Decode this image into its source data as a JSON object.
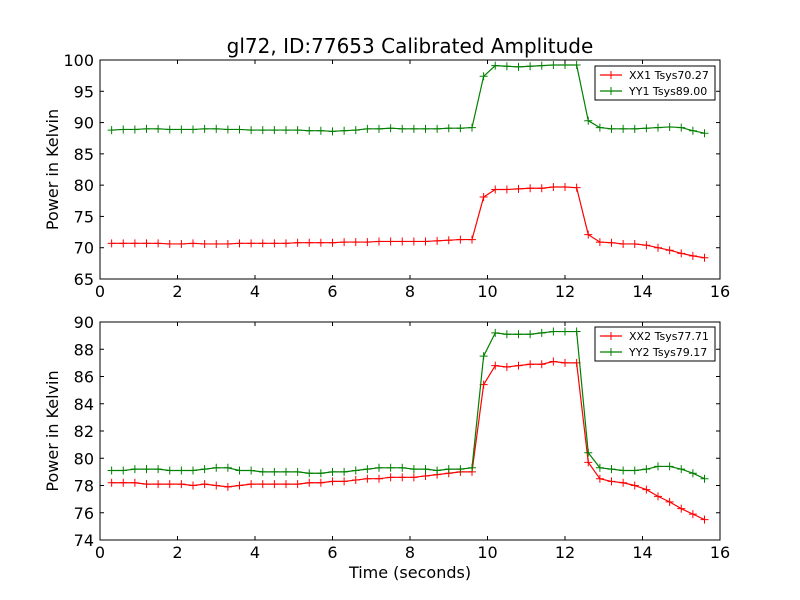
{
  "chart_data": [
    {
      "type": "line",
      "title": "gl72, ID:77653 Calibrated Amplitude",
      "xlabel": "",
      "ylabel": "Power in Kelvin",
      "xlim": [
        0,
        16
      ],
      "ylim": [
        65,
        100
      ],
      "xticks": [
        0,
        2,
        4,
        6,
        8,
        10,
        12,
        14,
        16
      ],
      "yticks": [
        65,
        70,
        75,
        80,
        85,
        90,
        95,
        100
      ],
      "legend_position": "top-right",
      "x": [
        0.3,
        0.6,
        0.9,
        1.2,
        1.5,
        1.8,
        2.1,
        2.4,
        2.7,
        3.0,
        3.3,
        3.6,
        3.9,
        4.2,
        4.5,
        4.8,
        5.1,
        5.4,
        5.7,
        6.0,
        6.3,
        6.6,
        6.9,
        7.2,
        7.5,
        7.8,
        8.1,
        8.4,
        8.7,
        9.0,
        9.3,
        9.6,
        9.9,
        10.2,
        10.5,
        10.8,
        11.1,
        11.4,
        11.7,
        12.0,
        12.3,
        12.6,
        12.9,
        13.2,
        13.5,
        13.8,
        14.1,
        14.4,
        14.7,
        15.0,
        15.3,
        15.6
      ],
      "series": [
        {
          "name": "XX1 Tsys70.27",
          "color": "#ff0000",
          "values": [
            70.7,
            70.7,
            70.7,
            70.7,
            70.7,
            70.6,
            70.6,
            70.7,
            70.6,
            70.6,
            70.6,
            70.7,
            70.7,
            70.7,
            70.7,
            70.7,
            70.8,
            70.8,
            70.8,
            70.8,
            70.9,
            70.9,
            70.9,
            71.0,
            71.0,
            71.0,
            71.0,
            71.0,
            71.1,
            71.2,
            71.3,
            71.3,
            78.1,
            79.3,
            79.3,
            79.4,
            79.5,
            79.5,
            79.7,
            79.7,
            79.6,
            72.1,
            70.9,
            70.8,
            70.6,
            70.6,
            70.4,
            70.0,
            69.6,
            69.1,
            68.7,
            68.4
          ]
        },
        {
          "name": "YY1 Tsys89.00",
          "color": "#008000",
          "values": [
            88.8,
            88.9,
            88.9,
            89.0,
            89.0,
            88.9,
            88.9,
            88.9,
            89.0,
            89.0,
            88.9,
            88.9,
            88.8,
            88.8,
            88.8,
            88.8,
            88.8,
            88.7,
            88.7,
            88.6,
            88.7,
            88.8,
            89.0,
            89.0,
            89.1,
            89.0,
            89.0,
            89.0,
            89.0,
            89.1,
            89.1,
            89.2,
            97.4,
            99.1,
            99.0,
            98.9,
            99.0,
            99.1,
            99.2,
            99.2,
            99.2,
            90.3,
            89.2,
            89.0,
            89.0,
            89.0,
            89.1,
            89.2,
            89.3,
            89.2,
            88.7,
            88.3
          ]
        }
      ]
    },
    {
      "type": "line",
      "title": "",
      "xlabel": "Time (seconds)",
      "ylabel": "Power in Kelvin",
      "xlim": [
        0,
        16
      ],
      "ylim": [
        74,
        90
      ],
      "xticks": [
        0,
        2,
        4,
        6,
        8,
        10,
        12,
        14,
        16
      ],
      "yticks": [
        74,
        76,
        78,
        80,
        82,
        84,
        86,
        88,
        90
      ],
      "legend_position": "top-right",
      "x": [
        0.3,
        0.6,
        0.9,
        1.2,
        1.5,
        1.8,
        2.1,
        2.4,
        2.7,
        3.0,
        3.3,
        3.6,
        3.9,
        4.2,
        4.5,
        4.8,
        5.1,
        5.4,
        5.7,
        6.0,
        6.3,
        6.6,
        6.9,
        7.2,
        7.5,
        7.8,
        8.1,
        8.4,
        8.7,
        9.0,
        9.3,
        9.6,
        9.9,
        10.2,
        10.5,
        10.8,
        11.1,
        11.4,
        11.7,
        12.0,
        12.3,
        12.6,
        12.9,
        13.2,
        13.5,
        13.8,
        14.1,
        14.4,
        14.7,
        15.0,
        15.3,
        15.6
      ],
      "series": [
        {
          "name": "XX2 Tsys77.71",
          "color": "#ff0000",
          "values": [
            78.2,
            78.2,
            78.2,
            78.1,
            78.1,
            78.1,
            78.1,
            78.0,
            78.1,
            78.0,
            77.9,
            78.0,
            78.1,
            78.1,
            78.1,
            78.1,
            78.1,
            78.2,
            78.2,
            78.3,
            78.3,
            78.4,
            78.5,
            78.5,
            78.6,
            78.6,
            78.6,
            78.7,
            78.8,
            78.9,
            79.0,
            79.0,
            85.4,
            86.8,
            86.7,
            86.8,
            86.9,
            86.9,
            87.1,
            87.0,
            87.0,
            79.7,
            78.5,
            78.3,
            78.2,
            78.0,
            77.7,
            77.2,
            76.8,
            76.3,
            75.9,
            75.5
          ]
        },
        {
          "name": "YY2 Tsys79.17",
          "color": "#008000",
          "values": [
            79.1,
            79.1,
            79.2,
            79.2,
            79.2,
            79.1,
            79.1,
            79.1,
            79.2,
            79.3,
            79.3,
            79.1,
            79.1,
            79.0,
            79.0,
            79.0,
            79.0,
            78.9,
            78.9,
            79.0,
            79.0,
            79.1,
            79.2,
            79.3,
            79.3,
            79.3,
            79.2,
            79.2,
            79.1,
            79.2,
            79.2,
            79.3,
            87.5,
            89.2,
            89.1,
            89.1,
            89.1,
            89.2,
            89.3,
            89.3,
            89.3,
            80.4,
            79.3,
            79.2,
            79.1,
            79.1,
            79.2,
            79.4,
            79.4,
            79.2,
            78.9,
            78.5
          ]
        }
      ]
    }
  ]
}
